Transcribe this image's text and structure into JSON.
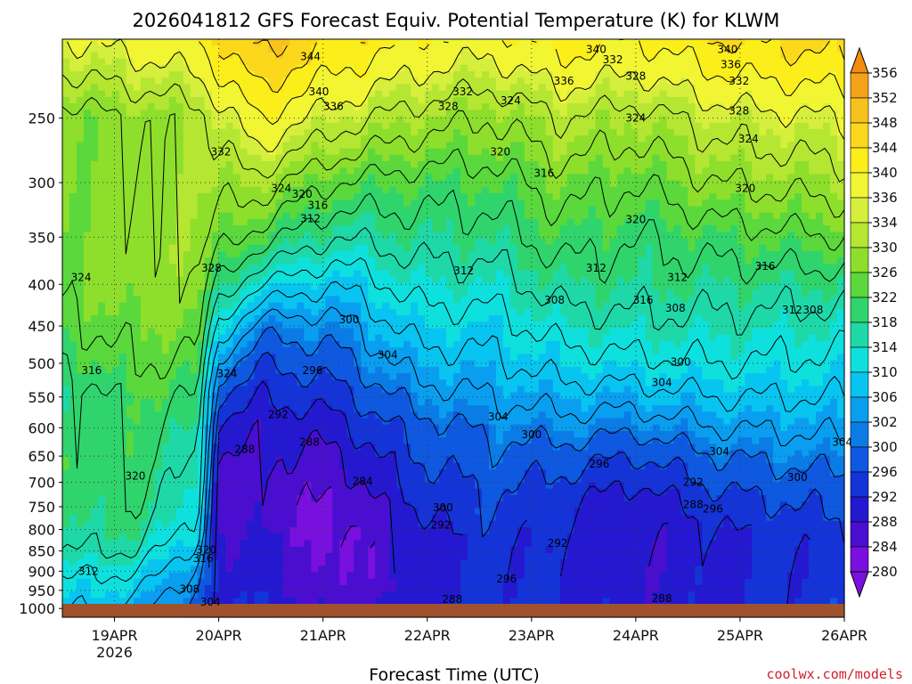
{
  "chart_data": {
    "type": "heatmap",
    "title": "2026041812 GFS Forecast Equiv. Potential Temperature (K) for KLWM",
    "xlabel": "Forecast Time (UTC)",
    "ylabel": "",
    "x_ticks": [
      {
        "label": "19APR",
        "sub": "2026",
        "day": 0.5
      },
      {
        "label": "20APR",
        "sub": "",
        "day": 1.5
      },
      {
        "label": "21APR",
        "sub": "",
        "day": 2.5
      },
      {
        "label": "22APR",
        "sub": "",
        "day": 3.5
      },
      {
        "label": "23APR",
        "sub": "",
        "day": 4.5
      },
      {
        "label": "24APR",
        "sub": "",
        "day": 5.5
      },
      {
        "label": "25APR",
        "sub": "",
        "day": 6.5
      },
      {
        "label": "26APR",
        "sub": "",
        "day": 7.5
      }
    ],
    "xlim_days": [
      0,
      7.5
    ],
    "y_ticks": [
      250,
      300,
      350,
      400,
      450,
      500,
      550,
      600,
      650,
      700,
      750,
      800,
      850,
      900,
      950,
      1000
    ],
    "ylim_hpa": [
      200,
      1025
    ],
    "y_scale": "log",
    "y_inverted": true,
    "colorbar_ticks": [
      356,
      352,
      348,
      344,
      340,
      336,
      334,
      330,
      326,
      322,
      318,
      314,
      310,
      306,
      302,
      300,
      296,
      292,
      288,
      284,
      280
    ],
    "colorbar_colors": [
      "#f28c10",
      "#f4a21a",
      "#f8c21e",
      "#fbd81c",
      "#fbee1a",
      "#f1f532",
      "#d6ee3c",
      "#b4e632",
      "#8ede2c",
      "#5ad83c",
      "#30d46c",
      "#1ed8a8",
      "#0ee0de",
      "#08c4f0",
      "#0a9ef0",
      "#0b7ce6",
      "#0f58e0",
      "#1434d8",
      "#2418d0",
      "#4a0ed0",
      "#7a10e0"
    ],
    "field_keyframes": [
      {
        "day": 0.0,
        "theta": [
          326,
          326,
          326,
          325,
          323,
          320,
          317,
          318,
          320,
          320,
          319,
          318,
          316,
          313,
          311,
          309
        ]
      },
      {
        "day": 0.7,
        "theta": [
          328,
          328,
          328,
          328,
          326,
          324,
          322,
          321,
          321,
          320,
          320,
          318,
          316,
          312,
          309,
          306
        ]
      },
      {
        "day": 1.3,
        "theta": [
          330,
          330,
          330,
          328,
          326,
          323,
          320,
          318,
          316,
          314,
          312,
          310,
          306,
          303,
          300,
          298
        ]
      },
      {
        "day": 1.5,
        "theta": [
          334,
          330,
          326,
          319,
          311,
          303,
          296,
          291,
          288,
          287,
          287,
          288,
          289,
          290,
          291,
          292
        ]
      },
      {
        "day": 1.9,
        "theta": [
          340,
          330,
          322,
          312,
          302,
          296,
          292,
          289,
          288,
          287,
          287,
          288,
          289,
          290,
          291,
          292
        ]
      },
      {
        "day": 2.6,
        "theta": [
          334,
          324,
          316,
          308,
          302,
          298,
          294,
          290,
          287,
          285,
          283,
          282,
          282,
          283,
          284,
          286
        ]
      },
      {
        "day": 3.4,
        "theta": [
          330,
          322,
          318,
          314,
          310,
          306,
          302,
          298,
          296,
          294,
          292,
          290,
          289,
          289,
          289,
          290
        ]
      },
      {
        "day": 4.1,
        "theta": [
          328,
          322,
          318,
          314,
          310,
          307,
          304,
          301,
          299,
          297,
          296,
          295,
          294,
          294,
          294,
          295
        ]
      },
      {
        "day": 4.8,
        "theta": [
          332,
          326,
          322,
          318,
          314,
          310,
          306,
          302,
          298,
          295,
          293,
          292,
          291,
          291,
          291,
          292
        ]
      },
      {
        "day": 5.5,
        "theta": [
          330,
          324,
          320,
          318,
          315,
          311,
          306,
          301,
          296,
          292,
          289,
          288,
          288,
          288,
          289,
          290
        ]
      },
      {
        "day": 6.3,
        "theta": [
          334,
          328,
          322,
          318,
          315,
          312,
          308,
          304,
          300,
          297,
          294,
          292,
          291,
          291,
          291,
          292
        ]
      },
      {
        "day": 7.5,
        "theta": [
          336,
          330,
          324,
          318,
          314,
          311,
          308,
          305,
          302,
          299,
          297,
          295,
          294,
          294,
          294,
          295
        ]
      }
    ],
    "contour_labels": [
      {
        "text": "344",
        "day": 2.38,
        "hpa": 210
      },
      {
        "text": "340",
        "day": 2.46,
        "hpa": 232
      },
      {
        "text": "336",
        "day": 2.6,
        "hpa": 242
      },
      {
        "text": "332",
        "day": 1.52,
        "hpa": 275
      },
      {
        "text": "328",
        "day": 1.43,
        "hpa": 382
      },
      {
        "text": "324",
        "day": 0.18,
        "hpa": 392
      },
      {
        "text": "324",
        "day": 2.1,
        "hpa": 305
      },
      {
        "text": "320",
        "day": 2.3,
        "hpa": 310
      },
      {
        "text": "316",
        "day": 2.45,
        "hpa": 320
      },
      {
        "text": "312",
        "day": 2.38,
        "hpa": 332
      },
      {
        "text": "300",
        "day": 2.75,
        "hpa": 442
      },
      {
        "text": "304",
        "day": 3.12,
        "hpa": 488
      },
      {
        "text": "296",
        "day": 2.4,
        "hpa": 510
      },
      {
        "text": "292",
        "day": 2.07,
        "hpa": 578
      },
      {
        "text": "288",
        "day": 2.37,
        "hpa": 625
      },
      {
        "text": "288",
        "day": 1.75,
        "hpa": 638
      },
      {
        "text": "284",
        "day": 2.88,
        "hpa": 698
      },
      {
        "text": "300",
        "day": 3.65,
        "hpa": 752
      },
      {
        "text": "292",
        "day": 3.63,
        "hpa": 790
      },
      {
        "text": "296",
        "day": 4.26,
        "hpa": 920
      },
      {
        "text": "288",
        "day": 3.74,
        "hpa": 975
      },
      {
        "text": "320",
        "day": 0.7,
        "hpa": 688
      },
      {
        "text": "312",
        "day": 0.25,
        "hpa": 900
      },
      {
        "text": "320",
        "day": 1.38,
        "hpa": 848
      },
      {
        "text": "316",
        "day": 1.35,
        "hpa": 868
      },
      {
        "text": "308",
        "day": 1.22,
        "hpa": 947
      },
      {
        "text": "304",
        "day": 1.42,
        "hpa": 982
      },
      {
        "text": "316",
        "day": 0.28,
        "hpa": 510
      },
      {
        "text": "324",
        "day": 1.58,
        "hpa": 515
      },
      {
        "text": "328",
        "day": 3.7,
        "hpa": 242
      },
      {
        "text": "332",
        "day": 3.84,
        "hpa": 232
      },
      {
        "text": "324",
        "day": 4.3,
        "hpa": 238
      },
      {
        "text": "320",
        "day": 4.2,
        "hpa": 275
      },
      {
        "text": "316",
        "day": 4.62,
        "hpa": 292
      },
      {
        "text": "312",
        "day": 3.85,
        "hpa": 385
      },
      {
        "text": "308",
        "day": 4.72,
        "hpa": 418
      },
      {
        "text": "312",
        "day": 5.12,
        "hpa": 382
      },
      {
        "text": "316",
        "day": 5.57,
        "hpa": 418
      },
      {
        "text": "320",
        "day": 5.5,
        "hpa": 333
      },
      {
        "text": "304",
        "day": 4.18,
        "hpa": 582
      },
      {
        "text": "300",
        "day": 4.5,
        "hpa": 612
      },
      {
        "text": "296",
        "day": 5.15,
        "hpa": 665
      },
      {
        "text": "292",
        "day": 4.75,
        "hpa": 832
      },
      {
        "text": "288",
        "day": 5.75,
        "hpa": 972
      },
      {
        "text": "336",
        "day": 4.81,
        "hpa": 225
      },
      {
        "text": "340",
        "day": 5.12,
        "hpa": 206
      },
      {
        "text": "332",
        "day": 5.28,
        "hpa": 212
      },
      {
        "text": "328",
        "day": 5.5,
        "hpa": 222
      },
      {
        "text": "324",
        "day": 5.5,
        "hpa": 250
      },
      {
        "text": "340",
        "day": 6.38,
        "hpa": 206
      },
      {
        "text": "336",
        "day": 6.41,
        "hpa": 215
      },
      {
        "text": "332",
        "day": 6.49,
        "hpa": 225
      },
      {
        "text": "328",
        "day": 6.49,
        "hpa": 245
      },
      {
        "text": "324",
        "day": 6.58,
        "hpa": 265
      },
      {
        "text": "320",
        "day": 6.55,
        "hpa": 305
      },
      {
        "text": "316",
        "day": 6.74,
        "hpa": 380
      },
      {
        "text": "312",
        "day": 5.9,
        "hpa": 392
      },
      {
        "text": "308",
        "day": 5.88,
        "hpa": 428
      },
      {
        "text": "312",
        "day": 7.0,
        "hpa": 430
      },
      {
        "text": "308",
        "day": 7.2,
        "hpa": 430
      },
      {
        "text": "300",
        "day": 5.93,
        "hpa": 498
      },
      {
        "text": "304",
        "day": 5.75,
        "hpa": 528
      },
      {
        "text": "304",
        "day": 6.3,
        "hpa": 642
      },
      {
        "text": "292",
        "day": 6.05,
        "hpa": 700
      },
      {
        "text": "288",
        "day": 6.05,
        "hpa": 745
      },
      {
        "text": "296",
        "day": 6.24,
        "hpa": 755
      },
      {
        "text": "300",
        "day": 7.05,
        "hpa": 690
      },
      {
        "text": "304",
        "day": 7.48,
        "hpa": 625
      }
    ]
  },
  "credit": "coolwx.com/models"
}
